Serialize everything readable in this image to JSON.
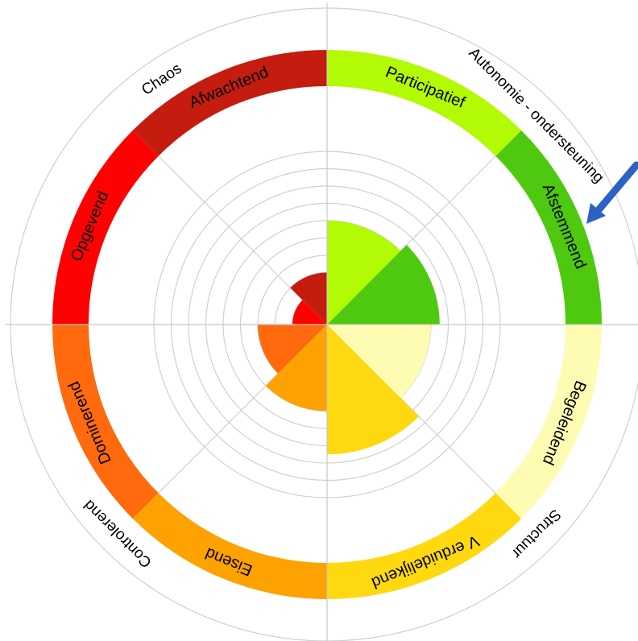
{
  "chart_data": {
    "type": "radial-bar",
    "title": "",
    "scale_max": 10,
    "segments": [
      {
        "label": "Afwachtend",
        "color": "#c41d10",
        "value": 3.0
      },
      {
        "label": "Opgevend",
        "color": "#fd0201",
        "value": 2.0
      },
      {
        "label": "Dominerend",
        "color": "#fe6a0d",
        "value": 4.0
      },
      {
        "label": "Eisend",
        "color": "#fea201",
        "value": 5.0
      },
      {
        "label": "Verduidelijkend",
        "display_label": "V erduidelijkend",
        "color": "#ffd910",
        "value": 7.5
      },
      {
        "label": "Begeleidend",
        "color": "#fefcb2",
        "value": 6.0
      },
      {
        "label": "Afstemmend",
        "color": "#4ec90f",
        "value": 6.5
      },
      {
        "label": "Participatief",
        "color": "#b3fa05",
        "value": 6.0
      }
    ],
    "quadrants": [
      {
        "label": "Chaos"
      },
      {
        "label": "Autonomie - ondersteuning"
      },
      {
        "label": "Structuur"
      },
      {
        "label": "Controlerend"
      }
    ],
    "arrow_color": "#2a63c4"
  }
}
